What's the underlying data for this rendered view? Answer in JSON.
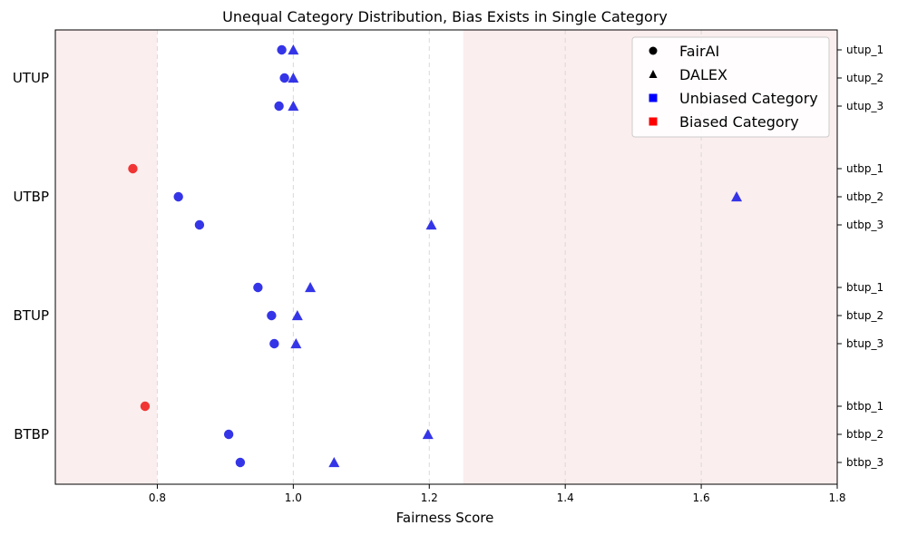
{
  "chart_data": {
    "type": "scatter",
    "title": "Unequal Category Distribution, Bias Exists in Single Category",
    "xlabel": "Fairness Score",
    "xlim": [
      0.65,
      1.8
    ],
    "xticks": [
      "0.8",
      "1.0",
      "1.2",
      "1.4",
      "1.6",
      "1.8"
    ],
    "xtick_values": [
      0.8,
      1.0,
      1.2,
      1.4,
      1.6,
      1.8
    ],
    "grid": "x-dashed",
    "shaded_regions": [
      [
        0.65,
        0.8
      ],
      [
        1.25,
        1.8
      ]
    ],
    "shaded_color": "#fbeeee",
    "groups": [
      "UTUP",
      "UTBP",
      "BTUP",
      "BTBP"
    ],
    "categories": [
      "utup_1",
      "utup_2",
      "utup_3",
      "utbp_1",
      "utbp_2",
      "utbp_3",
      "btup_1",
      "btup_2",
      "btup_3",
      "btbp_1",
      "btbp_2",
      "btbp_3"
    ],
    "series": [
      {
        "name": "FairAI",
        "marker": "circle",
        "values": [
          0.983,
          0.987,
          0.979,
          0.764,
          0.831,
          0.862,
          0.948,
          0.968,
          0.972,
          0.782,
          0.905,
          0.922
        ],
        "biased": [
          false,
          false,
          false,
          true,
          false,
          false,
          false,
          false,
          false,
          true,
          false,
          false
        ]
      },
      {
        "name": "DALEX",
        "marker": "triangle",
        "values": [
          1.0,
          1.0,
          1.0,
          null,
          1.652,
          1.203,
          1.025,
          1.006,
          1.004,
          null,
          1.198,
          1.06
        ],
        "biased": [
          false,
          false,
          false,
          false,
          false,
          false,
          false,
          false,
          false,
          false,
          false,
          false
        ]
      }
    ],
    "legend": {
      "placement": "top-right",
      "entries": [
        {
          "label": "FairAI",
          "marker": "circle",
          "color": "#000000"
        },
        {
          "label": "DALEX",
          "marker": "triangle",
          "color": "#000000"
        },
        {
          "label": "Unbiased Category",
          "marker": "square",
          "color": "#0000ff"
        },
        {
          "label": "Biased Category",
          "marker": "square",
          "color": "#ff0000"
        }
      ]
    },
    "colors": {
      "unbiased": "#1f1fe6",
      "biased": "#f02020"
    }
  }
}
